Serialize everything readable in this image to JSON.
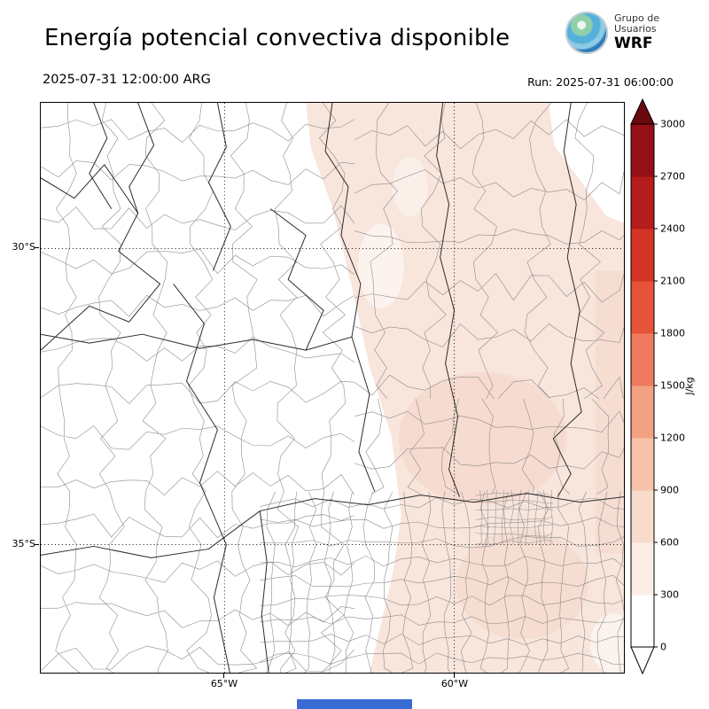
{
  "header": {
    "title": "Energía potencial convectiva disponible",
    "valid_datetime": "2025-07-31 12:00:00 ARG",
    "run_datetime": "Run: 2025-07-31 06:00:00",
    "logo": {
      "line1": "Grupo de",
      "line2": "Usuarios",
      "line3": "WRF"
    }
  },
  "map": {
    "yticks": [
      "30°S",
      "35°S"
    ],
    "xticks": [
      "65°W",
      "60°W"
    ],
    "shade_color": "#f8e5dc",
    "shade_color_dark": "#f3d2c3"
  },
  "colorbar": {
    "unit": "J/kg",
    "ticks_bottom_to_top": [
      "0",
      "300",
      "600",
      "900",
      "1200",
      "1500",
      "1800",
      "2100",
      "2400",
      "2700",
      "3000"
    ],
    "segment_colors_bottom_to_top": [
      "#ffffff",
      "#fceee7",
      "#f9dbcc",
      "#f6c2a9",
      "#f3a183",
      "#ef7b5f",
      "#e65338",
      "#d33425",
      "#b51c1c",
      "#931016"
    ],
    "arrow_top_color": "#6b0810",
    "arrow_bottom_color": "#ffffff"
  },
  "footer": {
    "bar_color": "#3a6ad4"
  }
}
